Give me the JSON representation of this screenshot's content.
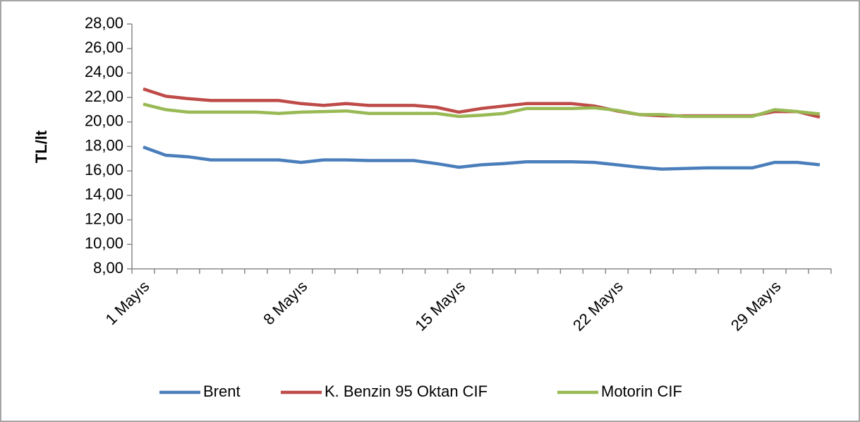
{
  "chart_data": {
    "type": "line",
    "y_label": "TL/lt",
    "categories": [
      "1 Mayıs",
      null,
      null,
      null,
      null,
      null,
      null,
      "8 Mayıs",
      null,
      null,
      null,
      null,
      null,
      null,
      "15 Mayıs",
      null,
      null,
      null,
      null,
      null,
      null,
      "22 Mayıs",
      null,
      null,
      null,
      null,
      null,
      null,
      "29 Mayıs",
      null,
      null
    ],
    "series": [
      {
        "name": "Brent",
        "color": "#4a7ebb",
        "values": [
          17.95,
          17.28,
          17.15,
          16.9,
          16.9,
          16.9,
          16.9,
          16.7,
          16.9,
          16.9,
          16.85,
          16.85,
          16.85,
          16.6,
          16.3,
          16.5,
          16.6,
          16.75,
          16.75,
          16.75,
          16.7,
          16.5,
          16.3,
          16.15,
          16.2,
          16.25,
          16.25,
          16.25,
          16.7,
          16.7,
          16.5
        ]
      },
      {
        "name": "K. Benzin 95 Oktan CIF",
        "color": "#be4b48",
        "values": [
          22.7,
          22.1,
          21.9,
          21.75,
          21.75,
          21.75,
          21.75,
          21.5,
          21.35,
          21.5,
          21.35,
          21.35,
          21.35,
          21.2,
          20.8,
          21.1,
          21.3,
          21.5,
          21.5,
          21.5,
          21.3,
          20.9,
          20.6,
          20.5,
          20.5,
          20.5,
          20.5,
          20.5,
          20.85,
          20.85,
          20.4
        ]
      },
      {
        "name": "Motorin CIF",
        "color": "#98b954",
        "values": [
          21.45,
          21.0,
          20.8,
          20.8,
          20.8,
          20.8,
          20.7,
          20.8,
          20.85,
          20.9,
          20.7,
          20.7,
          20.7,
          20.7,
          20.45,
          20.55,
          20.7,
          21.1,
          21.1,
          21.1,
          21.15,
          20.95,
          20.6,
          20.6,
          20.45,
          20.45,
          20.45,
          20.45,
          21.0,
          20.85,
          20.65
        ]
      }
    ],
    "ylim": [
      8,
      28
    ],
    "yticks": [
      {
        "value": 8,
        "label": "8,00"
      },
      {
        "value": 10,
        "label": "10,00"
      },
      {
        "value": 12,
        "label": "12,00"
      },
      {
        "value": 14,
        "label": "14,00"
      },
      {
        "value": 16,
        "label": "16,00"
      },
      {
        "value": 18,
        "label": "18,00"
      },
      {
        "value": 20,
        "label": "20,00"
      },
      {
        "value": 22,
        "label": "22,00"
      },
      {
        "value": 24,
        "label": "24,00"
      },
      {
        "value": 26,
        "label": "26,00"
      },
      {
        "value": 28,
        "label": "28,00"
      }
    ],
    "grid": false,
    "legend": "bottom"
  }
}
